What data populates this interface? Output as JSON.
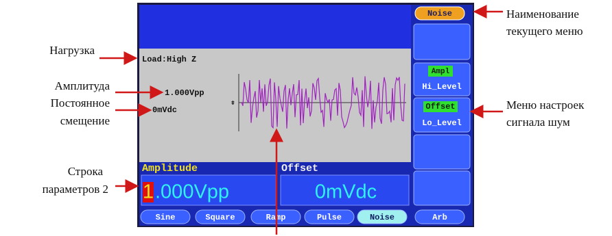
{
  "annotations": {
    "load": "Нагрузка",
    "amplitude": "Амплитуда",
    "offset": [
      "Постоянное",
      "смещение"
    ],
    "param_row": [
      "Строка",
      "параметров 2"
    ],
    "menu_name": [
      "Наименование",
      "текущего меню"
    ],
    "noise_menu": [
      "Меню настроек",
      "сигнала шум"
    ]
  },
  "screen": {
    "load": "Load:High Z",
    "amplitude": "1.000Vpp",
    "offset": "0mVdc",
    "params": [
      {
        "label": "Amplitude",
        "cursor": "1",
        "value": ".000Vpp"
      },
      {
        "label": "Offset",
        "value": "0mVdc"
      }
    ],
    "menu": {
      "title": "Noise",
      "items": [
        {
          "top": "Ampl",
          "bottom": "Hi_Level"
        },
        {
          "top": "Offset",
          "bottom": "Lo_Level"
        }
      ]
    },
    "tabs": [
      "Sine",
      "Square",
      "Ramp",
      "Pulse",
      "Noise",
      "Arb"
    ]
  }
}
